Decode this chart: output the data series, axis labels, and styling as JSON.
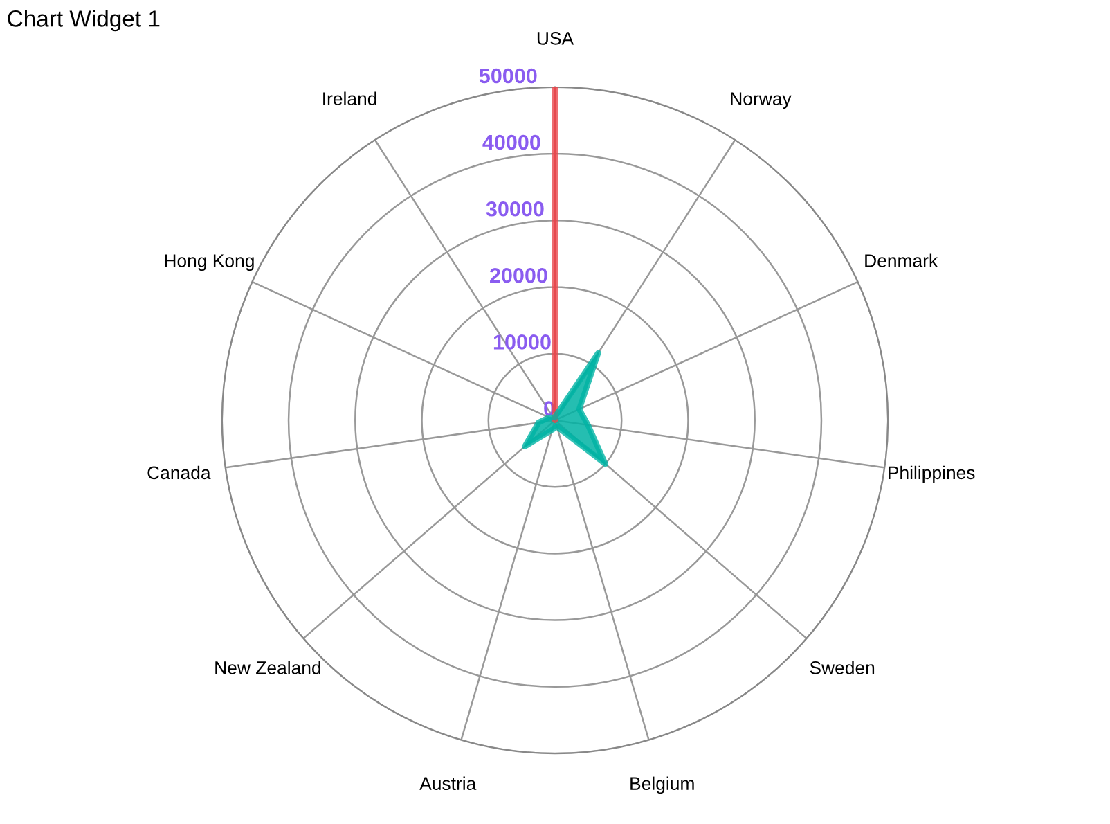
{
  "chart_data": {
    "type": "radar",
    "title": "Chart Widget 1",
    "categories": [
      "USA",
      "Norway",
      "Denmark",
      "Philippines",
      "Sweden",
      "Belgium",
      "Austria",
      "New Zealand",
      "Canada",
      "Hong Kong",
      "Ireland"
    ],
    "series": [
      {
        "color": "#e8474c",
        "values": [
          50000,
          0,
          0,
          0,
          0,
          0,
          0,
          0,
          0,
          0,
          0
        ]
      },
      {
        "color": "#00b3a4",
        "values": [
          500,
          12000,
          4000,
          5000,
          10000,
          1000,
          1500,
          6000,
          2500,
          1000,
          500
        ]
      }
    ],
    "ylim": [
      0,
      50000
    ],
    "yticks": [
      0,
      10000,
      20000,
      30000,
      40000,
      50000
    ],
    "grid": true,
    "legend": false
  }
}
